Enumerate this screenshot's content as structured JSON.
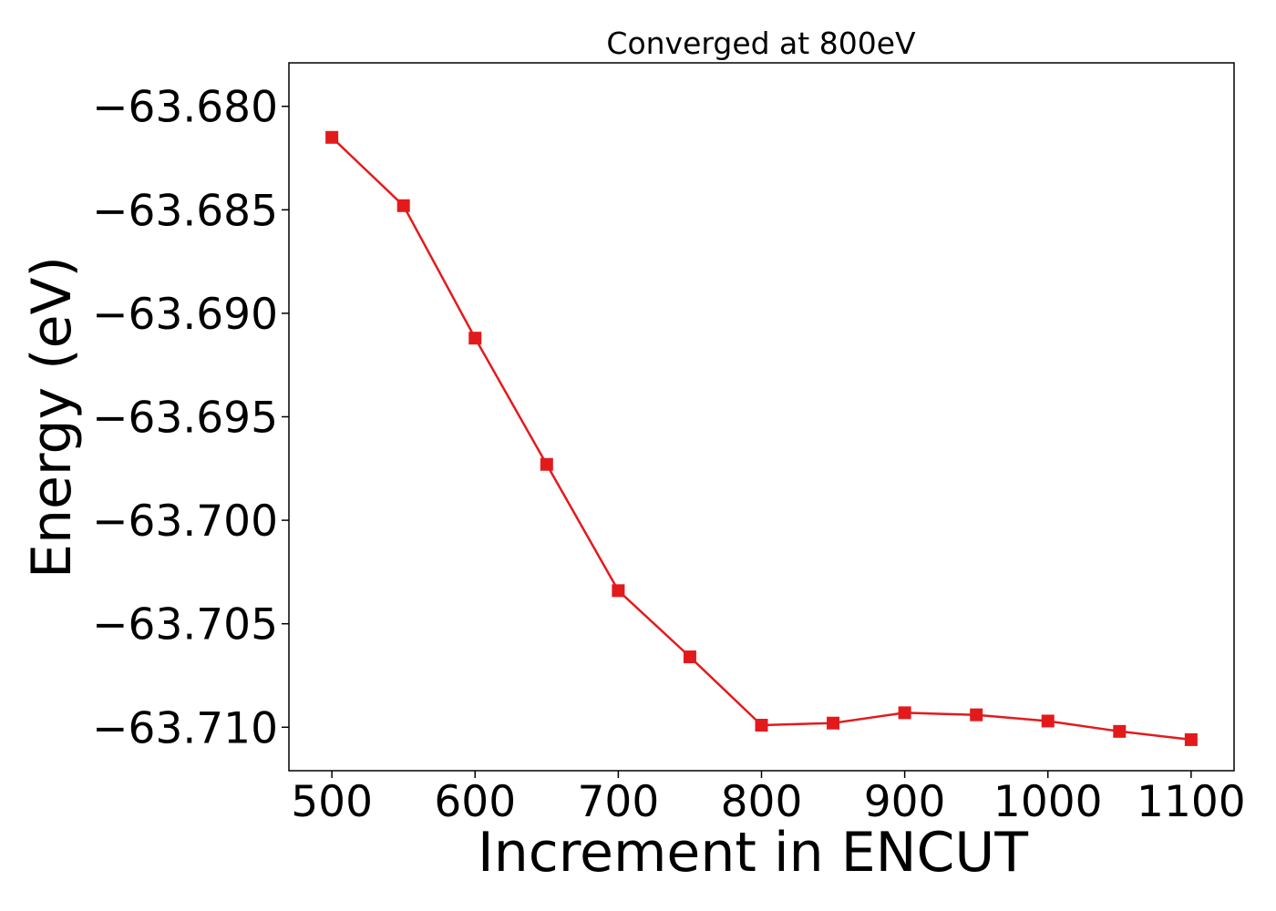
{
  "chart_data": {
    "type": "line",
    "title": "Converged at 800eV",
    "xlabel": "Increment in ENCUT",
    "ylabel": "Energy (eV)",
    "xlim": [
      470,
      1130
    ],
    "ylim": [
      -63.7121,
      -63.6779
    ],
    "x_ticks": [
      500,
      600,
      700,
      800,
      900,
      1000,
      1100
    ],
    "x_tick_labels": [
      "500",
      "600",
      "700",
      "800",
      "900",
      "1000",
      "1100"
    ],
    "y_ticks": [
      -63.68,
      -63.685,
      -63.69,
      -63.695,
      -63.7,
      -63.705,
      -63.71
    ],
    "y_tick_labels": [
      "−63.680",
      "−63.685",
      "−63.690",
      "−63.695",
      "−63.700",
      "−63.705",
      "−63.710"
    ],
    "grid": false,
    "series": [
      {
        "color": "#e31a1c",
        "marker": "square",
        "x": [
          500,
          550,
          600,
          650,
          700,
          750,
          800,
          850,
          900,
          950,
          1000,
          1050,
          1100
        ],
        "y": [
          -63.6815,
          -63.6848,
          -63.6912,
          -63.6973,
          -63.7034,
          -63.7066,
          -63.7099,
          -63.7098,
          -63.7093,
          -63.7094,
          -63.7097,
          -63.7102,
          -63.7106
        ]
      }
    ]
  }
}
